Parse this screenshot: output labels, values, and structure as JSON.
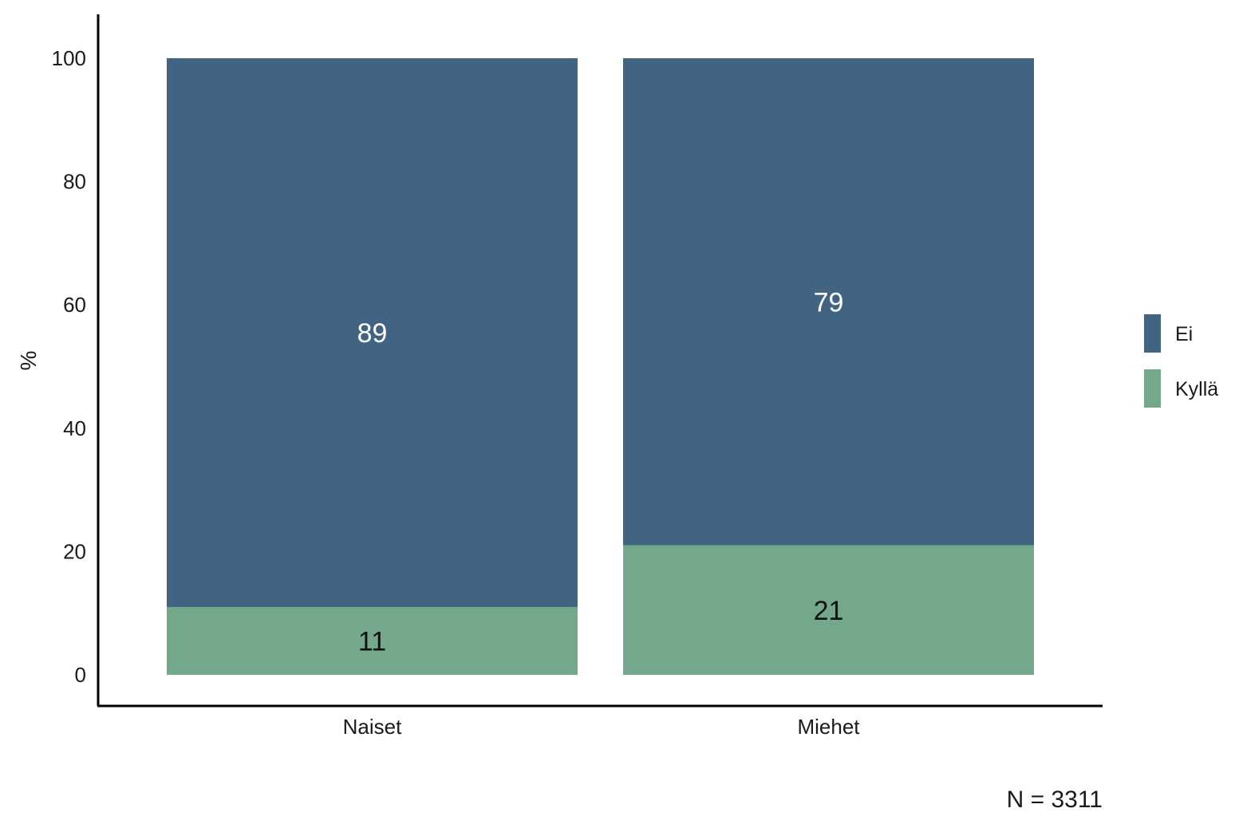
{
  "chart_data": {
    "type": "bar",
    "stacked": true,
    "categories": [
      "Naiset",
      "Miehet"
    ],
    "series": [
      {
        "name": "Kyllä",
        "values": [
          11,
          21
        ],
        "color": "#73a98a",
        "label_color": "#111111"
      },
      {
        "name": "Ei",
        "values": [
          89,
          79
        ],
        "color": "#416482",
        "label_color": "#ffffff"
      }
    ],
    "legend_order": [
      "Ei",
      "Kyllä"
    ],
    "title": "",
    "xlabel": "",
    "ylabel": "%",
    "ylim": [
      0,
      105
    ],
    "yticks": [
      0,
      20,
      40,
      60,
      80,
      100
    ],
    "grid": false,
    "legend_position": "right",
    "note": "N = 3311"
  }
}
